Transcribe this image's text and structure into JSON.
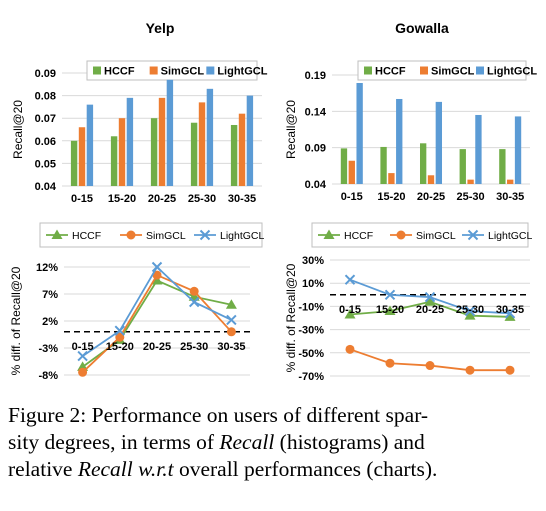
{
  "colors": {
    "HCCF": "#70ad47",
    "SimGCL": "#ed7d31",
    "LightGCL": "#5b9bd5"
  },
  "chart_data": [
    {
      "type": "bar",
      "title": "Yelp",
      "ylabel": "Recall@20",
      "categories": [
        "0-15",
        "15-20",
        "20-25",
        "25-30",
        "30-35"
      ],
      "yticks": [
        "0.04",
        "0.05",
        "0.06",
        "0.07",
        "0.08",
        "0.09"
      ],
      "ylim": [
        0.04,
        0.09
      ],
      "grid": true,
      "legend": "top",
      "series": [
        {
          "name": "HCCF",
          "values": [
            0.06,
            0.062,
            0.07,
            0.068,
            0.067
          ]
        },
        {
          "name": "SimGCL",
          "values": [
            0.066,
            0.07,
            0.079,
            0.077,
            0.072
          ]
        },
        {
          "name": "LightGCL",
          "values": [
            0.076,
            0.079,
            0.087,
            0.083,
            0.08
          ]
        }
      ]
    },
    {
      "type": "bar",
      "title": "Gowalla",
      "ylabel": "Recall@20",
      "categories": [
        "0-15",
        "15-20",
        "20-25",
        "25-30",
        "30-35"
      ],
      "yticks": [
        "0.04",
        "0.09",
        "0.14",
        "0.19"
      ],
      "ylim": [
        0.04,
        0.19
      ],
      "grid": true,
      "legend": "top",
      "series": [
        {
          "name": "HCCF",
          "values": [
            0.089,
            0.091,
            0.096,
            0.088,
            0.088
          ]
        },
        {
          "name": "SimGCL",
          "values": [
            0.072,
            0.055,
            0.052,
            0.046,
            0.046
          ]
        },
        {
          "name": "LightGCL",
          "values": [
            0.179,
            0.157,
            0.153,
            0.135,
            0.133
          ]
        }
      ]
    },
    {
      "type": "line",
      "ylabel": "% diff. of Recall@20",
      "categories": [
        "0-15",
        "15-20",
        "20-25",
        "25-30",
        "30-35"
      ],
      "yticks": [
        "-8%",
        "-3%",
        "2%",
        "7%",
        "12%"
      ],
      "ylim": [
        -8,
        12
      ],
      "reference_line": 0,
      "grid": true,
      "legend": "top",
      "series": [
        {
          "name": "HCCF",
          "values": [
            -6.5,
            -1.5,
            9.5,
            6.5,
            5.0
          ]
        },
        {
          "name": "SimGCL",
          "values": [
            -7.5,
            -1.0,
            10.5,
            7.5,
            0.0
          ]
        },
        {
          "name": "LightGCL",
          "values": [
            -4.5,
            0.2,
            12.0,
            5.5,
            2.2
          ]
        }
      ]
    },
    {
      "type": "line",
      "ylabel": "% diff. of Recall@20",
      "categories": [
        "0-15",
        "15-20",
        "20-25",
        "25-30",
        "30-35"
      ],
      "yticks": [
        "-70%",
        "-50%",
        "-30%",
        "-10%",
        "10%",
        "30%"
      ],
      "ylim": [
        -70,
        30
      ],
      "reference_line": 0,
      "grid": true,
      "legend": "top",
      "series": [
        {
          "name": "HCCF",
          "values": [
            -17,
            -14,
            -6,
            -18,
            -19
          ]
        },
        {
          "name": "SimGCL",
          "values": [
            -47,
            -59,
            -61,
            -65,
            -65
          ]
        },
        {
          "name": "LightGCL",
          "values": [
            13,
            0,
            -2,
            -14,
            -16
          ]
        }
      ]
    }
  ],
  "caption": {
    "line1": "Figure 2: Performance on users of different spar-",
    "line2_a": "sity degrees, in terms of ",
    "line2_em": "Recall",
    "line2_b": " (histograms) and",
    "line3_a": "relative ",
    "line3_em": "Recall w.r.t",
    "line3_b": " overall performances (charts)."
  }
}
